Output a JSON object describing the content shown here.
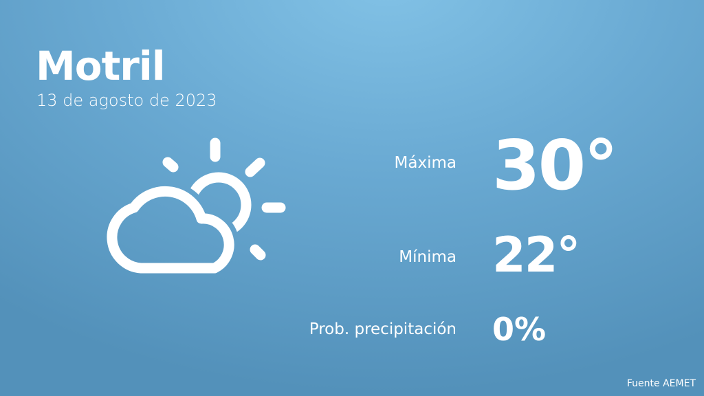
{
  "city": "Motril",
  "date": "13 de agosto de 2023",
  "weather_icon": "partly-cloudy-icon",
  "stats": {
    "max_label": "Máxima",
    "max_value": "30°",
    "min_label": "Mínima",
    "min_value": "22°",
    "precip_label": "Prob. precipitación",
    "precip_value": "0%"
  },
  "source": "Fuente AEMET",
  "colors": {
    "background_top": "#82c2e6",
    "background_bottom": "#5391ba",
    "text": "#ffffff"
  }
}
